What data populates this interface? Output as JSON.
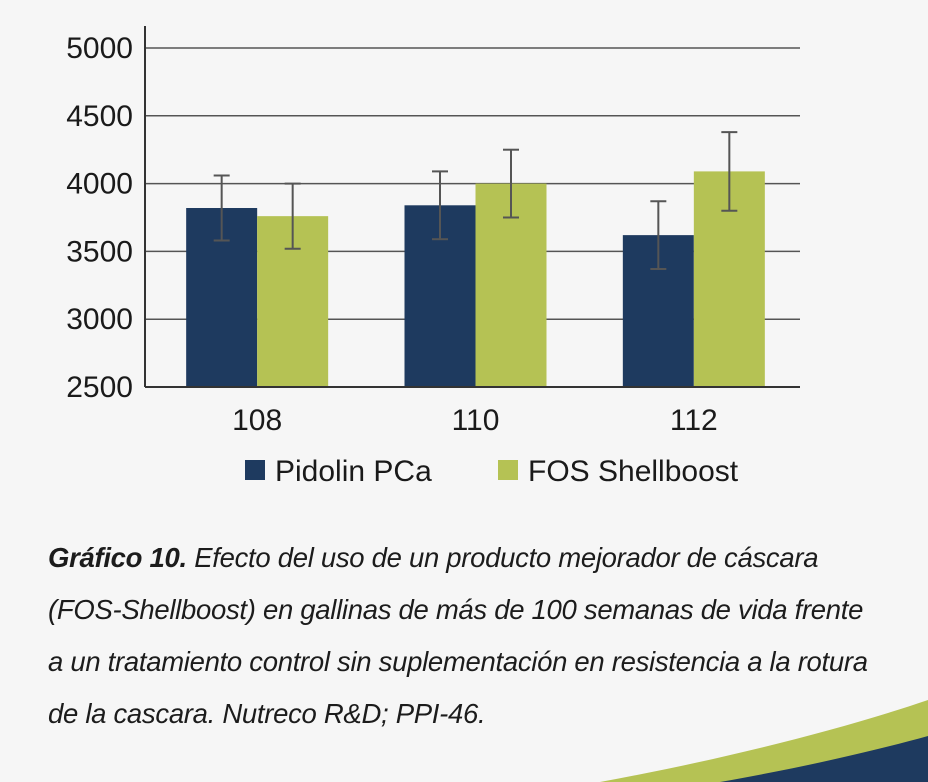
{
  "chart_data": {
    "type": "bar",
    "categories": [
      "108",
      "110",
      "112"
    ],
    "series": [
      {
        "name": "Pidolin PCa",
        "color": "#1e3a5f",
        "values": [
          3820,
          3840,
          3620
        ],
        "error": [
          240,
          250,
          250
        ]
      },
      {
        "name": "FOS Shellboost",
        "color": "#b5c254",
        "values": [
          3760,
          4000,
          4090
        ],
        "error": [
          240,
          250,
          290
        ]
      }
    ],
    "ylim": [
      2500,
      5000
    ],
    "yticks": [
      2500,
      3000,
      3500,
      4000,
      4500,
      5000
    ],
    "grid": true,
    "legend": "bottom",
    "title": "",
    "xlabel": "",
    "ylabel": ""
  },
  "caption": {
    "label": "Gráfico 10.",
    "text": "Efecto del uso de un producto mejorador de cáscara (FOS-Shellboost) en gallinas de más de 100 semanas de vida frente a un tratamiento control sin suplementación en resistencia a la rotura de la cascara. Nutreco R&D; PPI-46."
  },
  "colors": {
    "accent_green": "#b5c254",
    "accent_navy": "#1e3a5f",
    "grid": "#555555"
  }
}
